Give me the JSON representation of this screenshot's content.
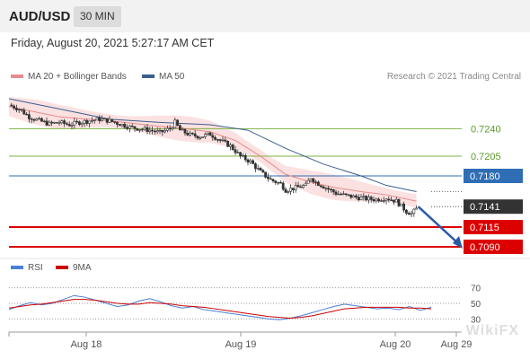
{
  "header": {
    "pair": "AUD/USD",
    "timeframe": "30 MIN",
    "datetime": "Friday, August 20, 2021 5:27:17 AM CET"
  },
  "legend": {
    "ma20": "MA 20 + Bollinger Bands",
    "ma50": "MA 50",
    "credit": "Research © 2021 Trading Central"
  },
  "rsi_legend": {
    "rsi": "RSI",
    "ma9": "9MA"
  },
  "watermark": "WikiFX",
  "colors": {
    "ma20": "#e88b8b",
    "ma50": "#3a5f8f",
    "bands": "#fbe1e1",
    "green_level": "#7cb342",
    "blue_level": "#2f6db5",
    "red_level": "#dd0000",
    "current": "#333333",
    "rsi": "#4a7fd6",
    "rsi_ma": "#cc0000",
    "arrow": "#2a5aa8"
  },
  "chart_data": [
    {
      "type": "candlestick",
      "y_range": [
        0.7082,
        0.7278
      ],
      "x_labels": [
        "Aug 18",
        "Aug 19",
        "Aug 20",
        "Aug 29"
      ],
      "levels": [
        {
          "value": 0.724,
          "label": "0.7240",
          "kind": "green"
        },
        {
          "value": 0.7205,
          "label": "0.7205",
          "kind": "green"
        },
        {
          "value": 0.718,
          "label": "0.7180",
          "kind": "blue"
        },
        {
          "value": 0.7141,
          "label": "0.7141",
          "kind": "current"
        },
        {
          "value": 0.7115,
          "label": "0.7115",
          "kind": "red"
        },
        {
          "value": 0.709,
          "label": "0.7090",
          "kind": "red"
        }
      ],
      "close_path": [
        [
          0,
          0.727
        ],
        [
          4,
          0.7265
        ],
        [
          8,
          0.7255
        ],
        [
          12,
          0.725
        ],
        [
          16,
          0.7246
        ],
        [
          20,
          0.7248
        ],
        [
          24,
          0.7245
        ],
        [
          28,
          0.7248
        ],
        [
          32,
          0.725
        ],
        [
          36,
          0.7252
        ],
        [
          40,
          0.725
        ],
        [
          44,
          0.7246
        ],
        [
          48,
          0.7242
        ],
        [
          52,
          0.724
        ],
        [
          56,
          0.7238
        ],
        [
          60,
          0.7235
        ],
        [
          64,
          0.724
        ],
        [
          66,
          0.7248
        ],
        [
          68,
          0.7238
        ],
        [
          72,
          0.7232
        ],
        [
          76,
          0.723
        ],
        [
          80,
          0.7233
        ],
        [
          84,
          0.7225
        ],
        [
          88,
          0.7218
        ],
        [
          92,
          0.7205
        ],
        [
          96,
          0.7198
        ],
        [
          100,
          0.7185
        ],
        [
          104,
          0.7175
        ],
        [
          108,
          0.717
        ],
        [
          110,
          0.7162
        ],
        [
          114,
          0.7165
        ],
        [
          118,
          0.7168
        ],
        [
          120,
          0.7178
        ],
        [
          122,
          0.7172
        ],
        [
          126,
          0.7165
        ],
        [
          130,
          0.7158
        ],
        [
          134,
          0.7155
        ],
        [
          138,
          0.7153
        ],
        [
          142,
          0.7151
        ],
        [
          146,
          0.715
        ],
        [
          150,
          0.7152
        ],
        [
          154,
          0.7148
        ],
        [
          158,
          0.7135
        ],
        [
          160,
          0.7132
        ],
        [
          162,
          0.7138
        ]
      ],
      "ma20_path": [
        [
          0,
          0.7268
        ],
        [
          20,
          0.7255
        ],
        [
          40,
          0.725
        ],
        [
          60,
          0.7243
        ],
        [
          70,
          0.724
        ],
        [
          80,
          0.7236
        ],
        [
          90,
          0.7225
        ],
        [
          100,
          0.7205
        ],
        [
          110,
          0.7182
        ],
        [
          120,
          0.7172
        ],
        [
          130,
          0.7165
        ],
        [
          140,
          0.716
        ],
        [
          150,
          0.7156
        ],
        [
          162,
          0.7148
        ]
      ],
      "ma50_path": [
        [
          0,
          0.7278
        ],
        [
          20,
          0.7265
        ],
        [
          40,
          0.7252
        ],
        [
          60,
          0.7248
        ],
        [
          80,
          0.7245
        ],
        [
          95,
          0.7238
        ],
        [
          110,
          0.7215
        ],
        [
          125,
          0.7195
        ],
        [
          140,
          0.718
        ],
        [
          150,
          0.7168
        ],
        [
          162,
          0.716
        ]
      ],
      "band_width": 0.0012,
      "forecast": [
        [
          162,
          0.7141
        ],
        [
          175,
          0.709
        ]
      ]
    },
    {
      "type": "line",
      "y_range": [
        20,
        80
      ],
      "ticks": [
        70,
        50,
        30
      ],
      "series": [
        {
          "name": "RSI",
          "values": [
            42,
            47,
            51,
            48,
            50,
            55,
            60,
            58,
            54,
            50,
            46,
            48,
            53,
            56,
            52,
            47,
            44,
            46,
            42,
            40,
            38,
            36,
            34,
            32,
            30,
            29,
            31,
            34,
            38,
            42,
            46,
            49,
            47,
            45,
            43,
            44,
            42,
            46,
            41,
            45
          ]
        },
        {
          "name": "9MA",
          "values": [
            44,
            46,
            48,
            49,
            51,
            53,
            55,
            55,
            54,
            52,
            50,
            49,
            49,
            51,
            50,
            49,
            47,
            46,
            45,
            43,
            41,
            39,
            37,
            35,
            33,
            32,
            31,
            32,
            34,
            37,
            40,
            43,
            44,
            45,
            45,
            45,
            45,
            44,
            44,
            43
          ]
        }
      ]
    }
  ]
}
